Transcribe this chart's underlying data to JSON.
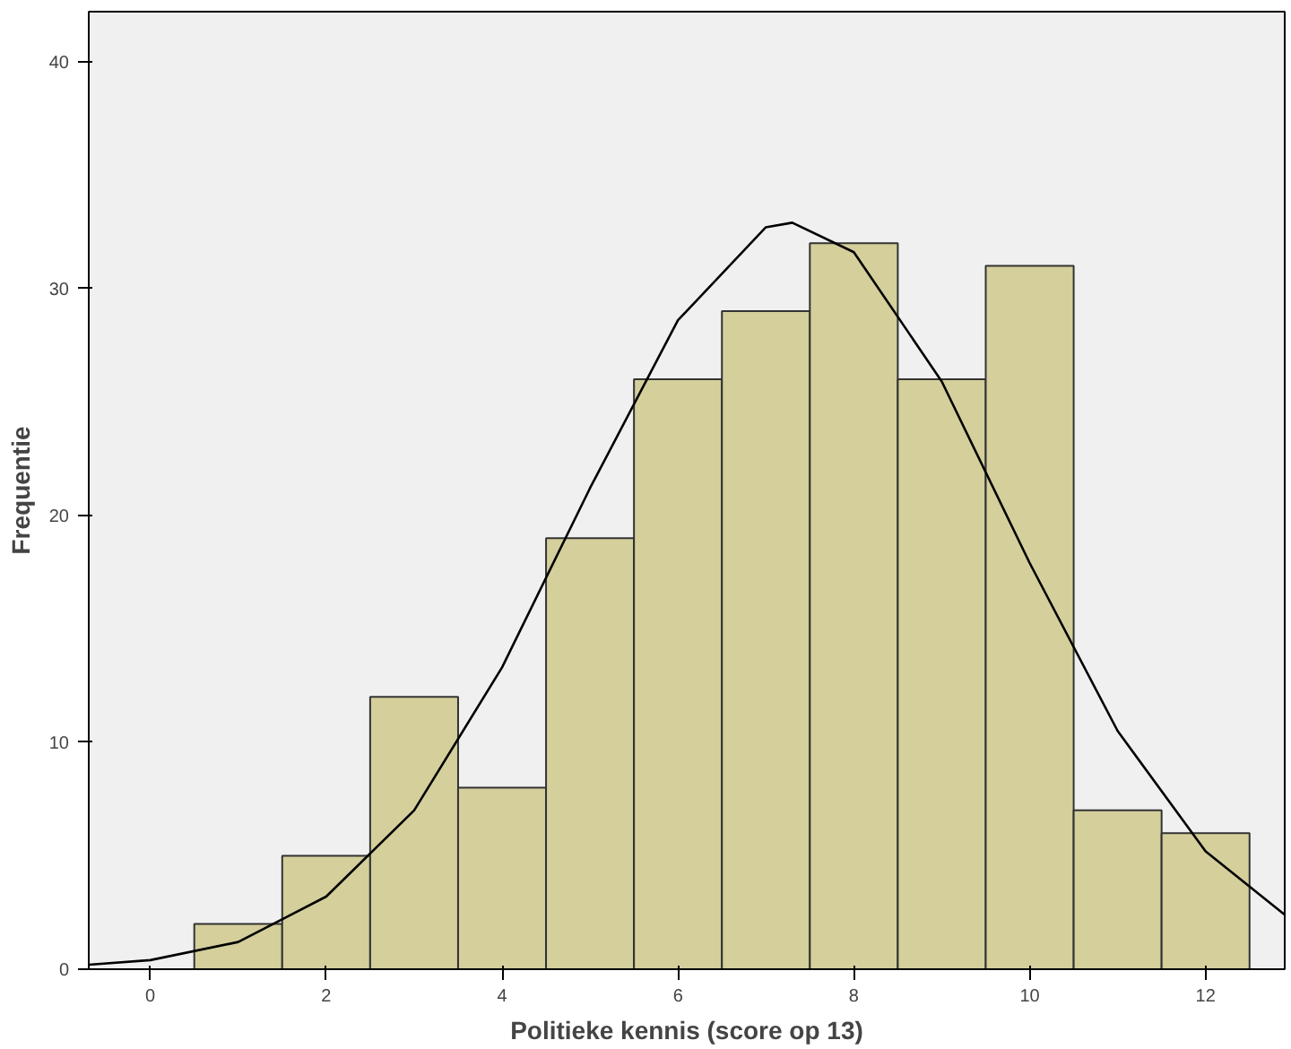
{
  "chart_data": {
    "type": "histogram",
    "xlabel": "Politieke kennis (score op 13)",
    "ylabel": "Frequentie",
    "bins": [
      0.5,
      1.5,
      2.5,
      3.5,
      4.5,
      5.5,
      6.5,
      7.5,
      8.5,
      9.5,
      10.5,
      11.5,
      12.5
    ],
    "values": [
      2,
      5,
      12,
      8,
      19,
      26,
      29,
      32,
      26,
      31,
      7,
      6
    ],
    "color": "#d4cf9b",
    "series": [
      {
        "type": "line",
        "color": "#000000",
        "x": [
          -0.7,
          0,
          1,
          2,
          3,
          4,
          5,
          6,
          7,
          7.3,
          8,
          9,
          10,
          11,
          12,
          12.9
        ],
        "values": [
          0.2,
          0.4,
          1.2,
          3.2,
          7.0,
          13.3,
          21.2,
          28.6,
          32.7,
          32.9,
          31.6,
          25.9,
          17.9,
          10.5,
          5.2,
          2.4
        ]
      }
    ],
    "xlim": [
      -0.7,
      12.9
    ],
    "xticks": [
      0,
      2,
      4,
      6,
      8,
      10,
      12
    ],
    "ylim": [
      0,
      42.2
    ],
    "yticks": [
      0,
      10,
      20,
      30,
      40
    ],
    "grid": false,
    "marker": "none",
    "line_style": "solid"
  }
}
